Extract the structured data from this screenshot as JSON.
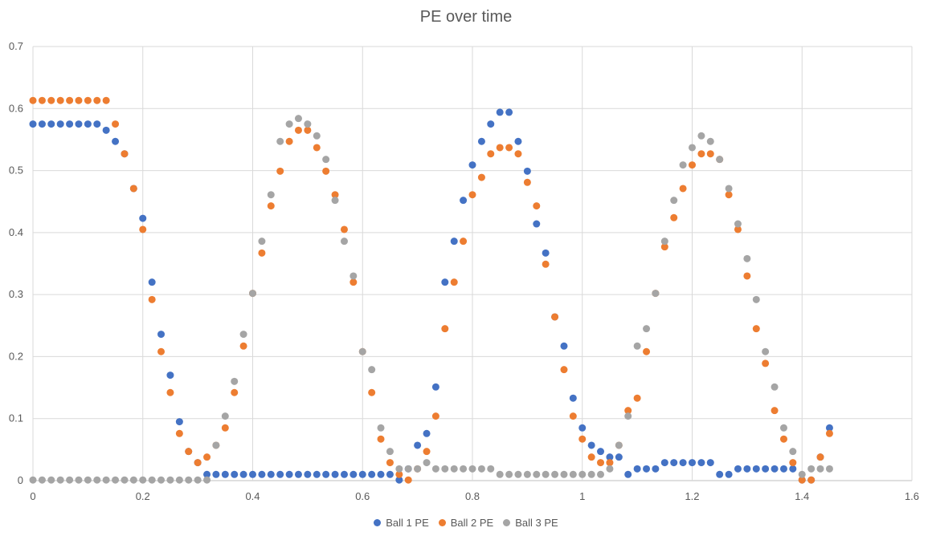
{
  "chart_data": {
    "type": "scatter",
    "title": "PE over time",
    "xlabel": "",
    "ylabel": "",
    "xlim": [
      0,
      1.6
    ],
    "ylim": [
      0,
      0.7
    ],
    "x_ticks": [
      "0",
      "0.2",
      "0.4",
      "0.6",
      "0.8",
      "1",
      "1.2",
      "1.4",
      "1.6"
    ],
    "y_ticks": [
      "0",
      "0.1",
      "0.2",
      "0.3",
      "0.4",
      "0.5",
      "0.6",
      "0.7"
    ],
    "grid": true,
    "legend_position": "bottom",
    "series": [
      {
        "name": "Ball 1 PE",
        "color": "#4472C4",
        "points": [
          [
            0,
            0.575
          ],
          [
            0.0167,
            0.575
          ],
          [
            0.0333,
            0.575
          ],
          [
            0.05,
            0.575
          ],
          [
            0.0667,
            0.575
          ],
          [
            0.0833,
            0.575
          ],
          [
            0.1,
            0.575
          ],
          [
            0.1167,
            0.575
          ],
          [
            0.1333,
            0.565
          ],
          [
            0.15,
            0.547
          ],
          [
            0.1667,
            0.527
          ],
          [
            0.1833,
            0.471
          ],
          [
            0.2,
            0.423
          ],
          [
            0.2167,
            0.32
          ],
          [
            0.2333,
            0.236
          ],
          [
            0.25,
            0.17
          ],
          [
            0.2667,
            0.095
          ],
          [
            0.2833,
            0.047
          ],
          [
            0.3,
            0.029
          ],
          [
            0.3167,
            0.01
          ],
          [
            0.3333,
            0.01
          ],
          [
            0.35,
            0.01
          ],
          [
            0.3667,
            0.01
          ],
          [
            0.3833,
            0.01
          ],
          [
            0.4,
            0.01
          ],
          [
            0.4167,
            0.01
          ],
          [
            0.4333,
            0.01
          ],
          [
            0.45,
            0.01
          ],
          [
            0.4667,
            0.01
          ],
          [
            0.4833,
            0.01
          ],
          [
            0.5,
            0.01
          ],
          [
            0.5167,
            0.01
          ],
          [
            0.5333,
            0.01
          ],
          [
            0.55,
            0.01
          ],
          [
            0.5667,
            0.01
          ],
          [
            0.5833,
            0.01
          ],
          [
            0.6,
            0.01
          ],
          [
            0.6167,
            0.01
          ],
          [
            0.6333,
            0.01
          ],
          [
            0.65,
            0.01
          ],
          [
            0.6667,
            0.001
          ],
          [
            0.6833,
            0.019
          ],
          [
            0.7,
            0.057
          ],
          [
            0.7167,
            0.076
          ],
          [
            0.7333,
            0.151
          ],
          [
            0.75,
            0.32
          ],
          [
            0.7667,
            0.386
          ],
          [
            0.7833,
            0.452
          ],
          [
            0.8,
            0.509
          ],
          [
            0.8167,
            0.547
          ],
          [
            0.8333,
            0.575
          ],
          [
            0.85,
            0.594
          ],
          [
            0.8667,
            0.594
          ],
          [
            0.8833,
            0.547
          ],
          [
            0.9,
            0.499
          ],
          [
            0.9167,
            0.414
          ],
          [
            0.9333,
            0.367
          ],
          [
            0.95,
            0.264
          ],
          [
            0.9667,
            0.217
          ],
          [
            0.9833,
            0.133
          ],
          [
            1.0,
            0.085
          ],
          [
            1.0167,
            0.057
          ],
          [
            1.0333,
            0.047
          ],
          [
            1.05,
            0.038
          ],
          [
            1.0667,
            0.038
          ],
          [
            1.0833,
            0.01
          ],
          [
            1.1,
            0.019
          ],
          [
            1.1167,
            0.019
          ],
          [
            1.1333,
            0.019
          ],
          [
            1.15,
            0.029
          ],
          [
            1.1667,
            0.029
          ],
          [
            1.1833,
            0.029
          ],
          [
            1.2,
            0.029
          ],
          [
            1.2167,
            0.029
          ],
          [
            1.2333,
            0.029
          ],
          [
            1.25,
            0.01
          ],
          [
            1.2667,
            0.01
          ],
          [
            1.2833,
            0.019
          ],
          [
            1.3,
            0.019
          ],
          [
            1.3167,
            0.019
          ],
          [
            1.3333,
            0.019
          ],
          [
            1.35,
            0.019
          ],
          [
            1.3667,
            0.019
          ],
          [
            1.3833,
            0.019
          ],
          [
            1.4,
            0.001
          ],
          [
            1.4167,
            0.001
          ],
          [
            1.4333,
            0.038
          ],
          [
            1.45,
            0.085
          ]
        ]
      },
      {
        "name": "Ball 2 PE",
        "color": "#ED7D31",
        "points": [
          [
            0,
            0.613
          ],
          [
            0.0167,
            0.613
          ],
          [
            0.0333,
            0.613
          ],
          [
            0.05,
            0.613
          ],
          [
            0.0667,
            0.613
          ],
          [
            0.0833,
            0.613
          ],
          [
            0.1,
            0.613
          ],
          [
            0.1167,
            0.613
          ],
          [
            0.1333,
            0.613
          ],
          [
            0.15,
            0.575
          ],
          [
            0.1667,
            0.527
          ],
          [
            0.1833,
            0.471
          ],
          [
            0.2,
            0.405
          ],
          [
            0.2167,
            0.292
          ],
          [
            0.2333,
            0.208
          ],
          [
            0.25,
            0.142
          ],
          [
            0.2667,
            0.076
          ],
          [
            0.2833,
            0.047
          ],
          [
            0.3,
            0.029
          ],
          [
            0.3167,
            0.038
          ],
          [
            0.3333,
            0.057
          ],
          [
            0.35,
            0.085
          ],
          [
            0.3667,
            0.142
          ],
          [
            0.3833,
            0.217
          ],
          [
            0.4,
            0.302
          ],
          [
            0.4167,
            0.367
          ],
          [
            0.4333,
            0.443
          ],
          [
            0.45,
            0.499
          ],
          [
            0.4667,
            0.547
          ],
          [
            0.4833,
            0.565
          ],
          [
            0.5,
            0.565
          ],
          [
            0.5167,
            0.537
          ],
          [
            0.5333,
            0.499
          ],
          [
            0.55,
            0.461
          ],
          [
            0.5667,
            0.405
          ],
          [
            0.5833,
            0.32
          ],
          [
            0.6,
            0.208
          ],
          [
            0.6167,
            0.142
          ],
          [
            0.6333,
            0.067
          ],
          [
            0.65,
            0.029
          ],
          [
            0.6667,
            0.01
          ],
          [
            0.6833,
            0.001
          ],
          [
            0.7,
            0.019
          ],
          [
            0.7167,
            0.047
          ],
          [
            0.7333,
            0.104
          ],
          [
            0.75,
            0.245
          ],
          [
            0.7667,
            0.32
          ],
          [
            0.7833,
            0.386
          ],
          [
            0.8,
            0.461
          ],
          [
            0.8167,
            0.489
          ],
          [
            0.8333,
            0.527
          ],
          [
            0.85,
            0.537
          ],
          [
            0.8667,
            0.537
          ],
          [
            0.8833,
            0.527
          ],
          [
            0.9,
            0.481
          ],
          [
            0.9167,
            0.443
          ],
          [
            0.9333,
            0.349
          ],
          [
            0.95,
            0.264
          ],
          [
            0.9667,
            0.179
          ],
          [
            0.9833,
            0.104
          ],
          [
            1.0,
            0.067
          ],
          [
            1.0167,
            0.038
          ],
          [
            1.0333,
            0.029
          ],
          [
            1.05,
            0.029
          ],
          [
            1.0667,
            0.057
          ],
          [
            1.0833,
            0.113
          ],
          [
            1.1,
            0.133
          ],
          [
            1.1167,
            0.208
          ],
          [
            1.1333,
            0.302
          ],
          [
            1.15,
            0.377
          ],
          [
            1.1667,
            0.424
          ],
          [
            1.1833,
            0.471
          ],
          [
            1.2,
            0.509
          ],
          [
            1.2167,
            0.527
          ],
          [
            1.2333,
            0.527
          ],
          [
            1.25,
            0.518
          ],
          [
            1.2667,
            0.461
          ],
          [
            1.2833,
            0.405
          ],
          [
            1.3,
            0.33
          ],
          [
            1.3167,
            0.245
          ],
          [
            1.3333,
            0.189
          ],
          [
            1.35,
            0.113
          ],
          [
            1.3667,
            0.067
          ],
          [
            1.3833,
            0.029
          ],
          [
            1.4,
            0.001
          ],
          [
            1.4167,
            0.001
          ],
          [
            1.4333,
            0.038
          ],
          [
            1.45,
            0.076
          ]
        ]
      },
      {
        "name": "Ball 3 PE",
        "color": "#A5A5A5",
        "points": [
          [
            0,
            0.001
          ],
          [
            0.0167,
            0.001
          ],
          [
            0.0333,
            0.001
          ],
          [
            0.05,
            0.001
          ],
          [
            0.0667,
            0.001
          ],
          [
            0.0833,
            0.001
          ],
          [
            0.1,
            0.001
          ],
          [
            0.1167,
            0.001
          ],
          [
            0.1333,
            0.001
          ],
          [
            0.15,
            0.001
          ],
          [
            0.1667,
            0.001
          ],
          [
            0.1833,
            0.001
          ],
          [
            0.2,
            0.001
          ],
          [
            0.2167,
            0.001
          ],
          [
            0.2333,
            0.001
          ],
          [
            0.25,
            0.001
          ],
          [
            0.2667,
            0.001
          ],
          [
            0.2833,
            0.001
          ],
          [
            0.3,
            0.001
          ],
          [
            0.3167,
            0.001
          ],
          [
            0.3333,
            0.057
          ],
          [
            0.35,
            0.104
          ],
          [
            0.3667,
            0.16
          ],
          [
            0.3833,
            0.236
          ],
          [
            0.4,
            0.302
          ],
          [
            0.4167,
            0.386
          ],
          [
            0.4333,
            0.461
          ],
          [
            0.45,
            0.547
          ],
          [
            0.4667,
            0.575
          ],
          [
            0.4833,
            0.584
          ],
          [
            0.5,
            0.575
          ],
          [
            0.5167,
            0.556
          ],
          [
            0.5333,
            0.518
          ],
          [
            0.55,
            0.452
          ],
          [
            0.5667,
            0.386
          ],
          [
            0.5833,
            0.33
          ],
          [
            0.6,
            0.208
          ],
          [
            0.6167,
            0.179
          ],
          [
            0.6333,
            0.085
          ],
          [
            0.65,
            0.047
          ],
          [
            0.6667,
            0.019
          ],
          [
            0.6833,
            0.019
          ],
          [
            0.7,
            0.019
          ],
          [
            0.7167,
            0.029
          ],
          [
            0.7333,
            0.019
          ],
          [
            0.75,
            0.019
          ],
          [
            0.7667,
            0.019
          ],
          [
            0.7833,
            0.019
          ],
          [
            0.8,
            0.019
          ],
          [
            0.8167,
            0.019
          ],
          [
            0.8333,
            0.019
          ],
          [
            0.85,
            0.01
          ],
          [
            0.8667,
            0.01
          ],
          [
            0.8833,
            0.01
          ],
          [
            0.9,
            0.01
          ],
          [
            0.9167,
            0.01
          ],
          [
            0.9333,
            0.01
          ],
          [
            0.95,
            0.01
          ],
          [
            0.9667,
            0.01
          ],
          [
            0.9833,
            0.01
          ],
          [
            1.0,
            0.01
          ],
          [
            1.0167,
            0.01
          ],
          [
            1.0333,
            0.01
          ],
          [
            1.05,
            0.019
          ],
          [
            1.0667,
            0.057
          ],
          [
            1.0833,
            0.104
          ],
          [
            1.1,
            0.217
          ],
          [
            1.1167,
            0.245
          ],
          [
            1.1333,
            0.302
          ],
          [
            1.15,
            0.386
          ],
          [
            1.1667,
            0.452
          ],
          [
            1.1833,
            0.509
          ],
          [
            1.2,
            0.537
          ],
          [
            1.2167,
            0.556
          ],
          [
            1.2333,
            0.547
          ],
          [
            1.25,
            0.518
          ],
          [
            1.2667,
            0.471
          ],
          [
            1.2833,
            0.414
          ],
          [
            1.3,
            0.358
          ],
          [
            1.3167,
            0.292
          ],
          [
            1.3333,
            0.208
          ],
          [
            1.35,
            0.151
          ],
          [
            1.3667,
            0.085
          ],
          [
            1.3833,
            0.047
          ],
          [
            1.4,
            0.01
          ],
          [
            1.4167,
            0.019
          ],
          [
            1.4333,
            0.019
          ],
          [
            1.45,
            0.019
          ]
        ]
      }
    ]
  }
}
